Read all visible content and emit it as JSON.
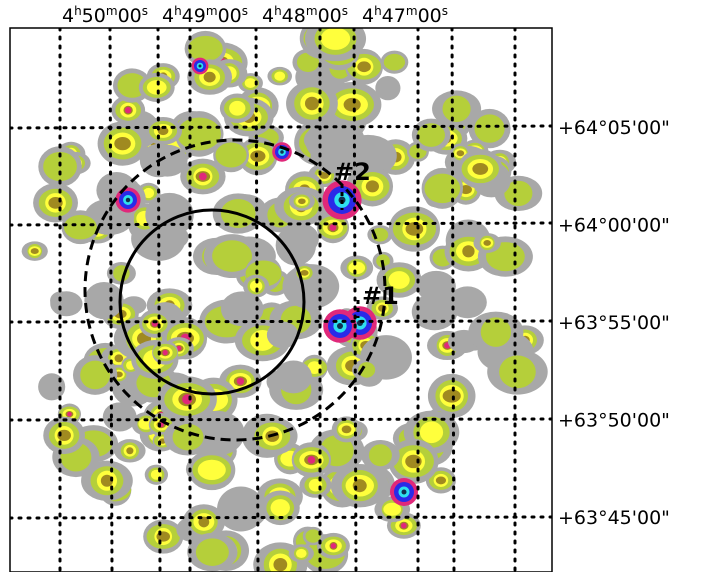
{
  "ra_labels": [
    [
      "4",
      "h",
      "50",
      "m",
      "00",
      "s"
    ],
    [
      "4",
      "h",
      "49",
      "m",
      "00",
      "s"
    ],
    [
      "4",
      "h",
      "48",
      "m",
      "00",
      "s"
    ],
    [
      "4",
      "h",
      "47",
      "m",
      "00",
      "s"
    ]
  ],
  "dec_labels": [
    "+64°05'00\"",
    "+64°00'00\"",
    "+63°55'00\"",
    "+63°50'00\"",
    "+63°45'00\""
  ],
  "sources": [
    {
      "label": "#1"
    },
    {
      "label": "#2"
    }
  ]
}
